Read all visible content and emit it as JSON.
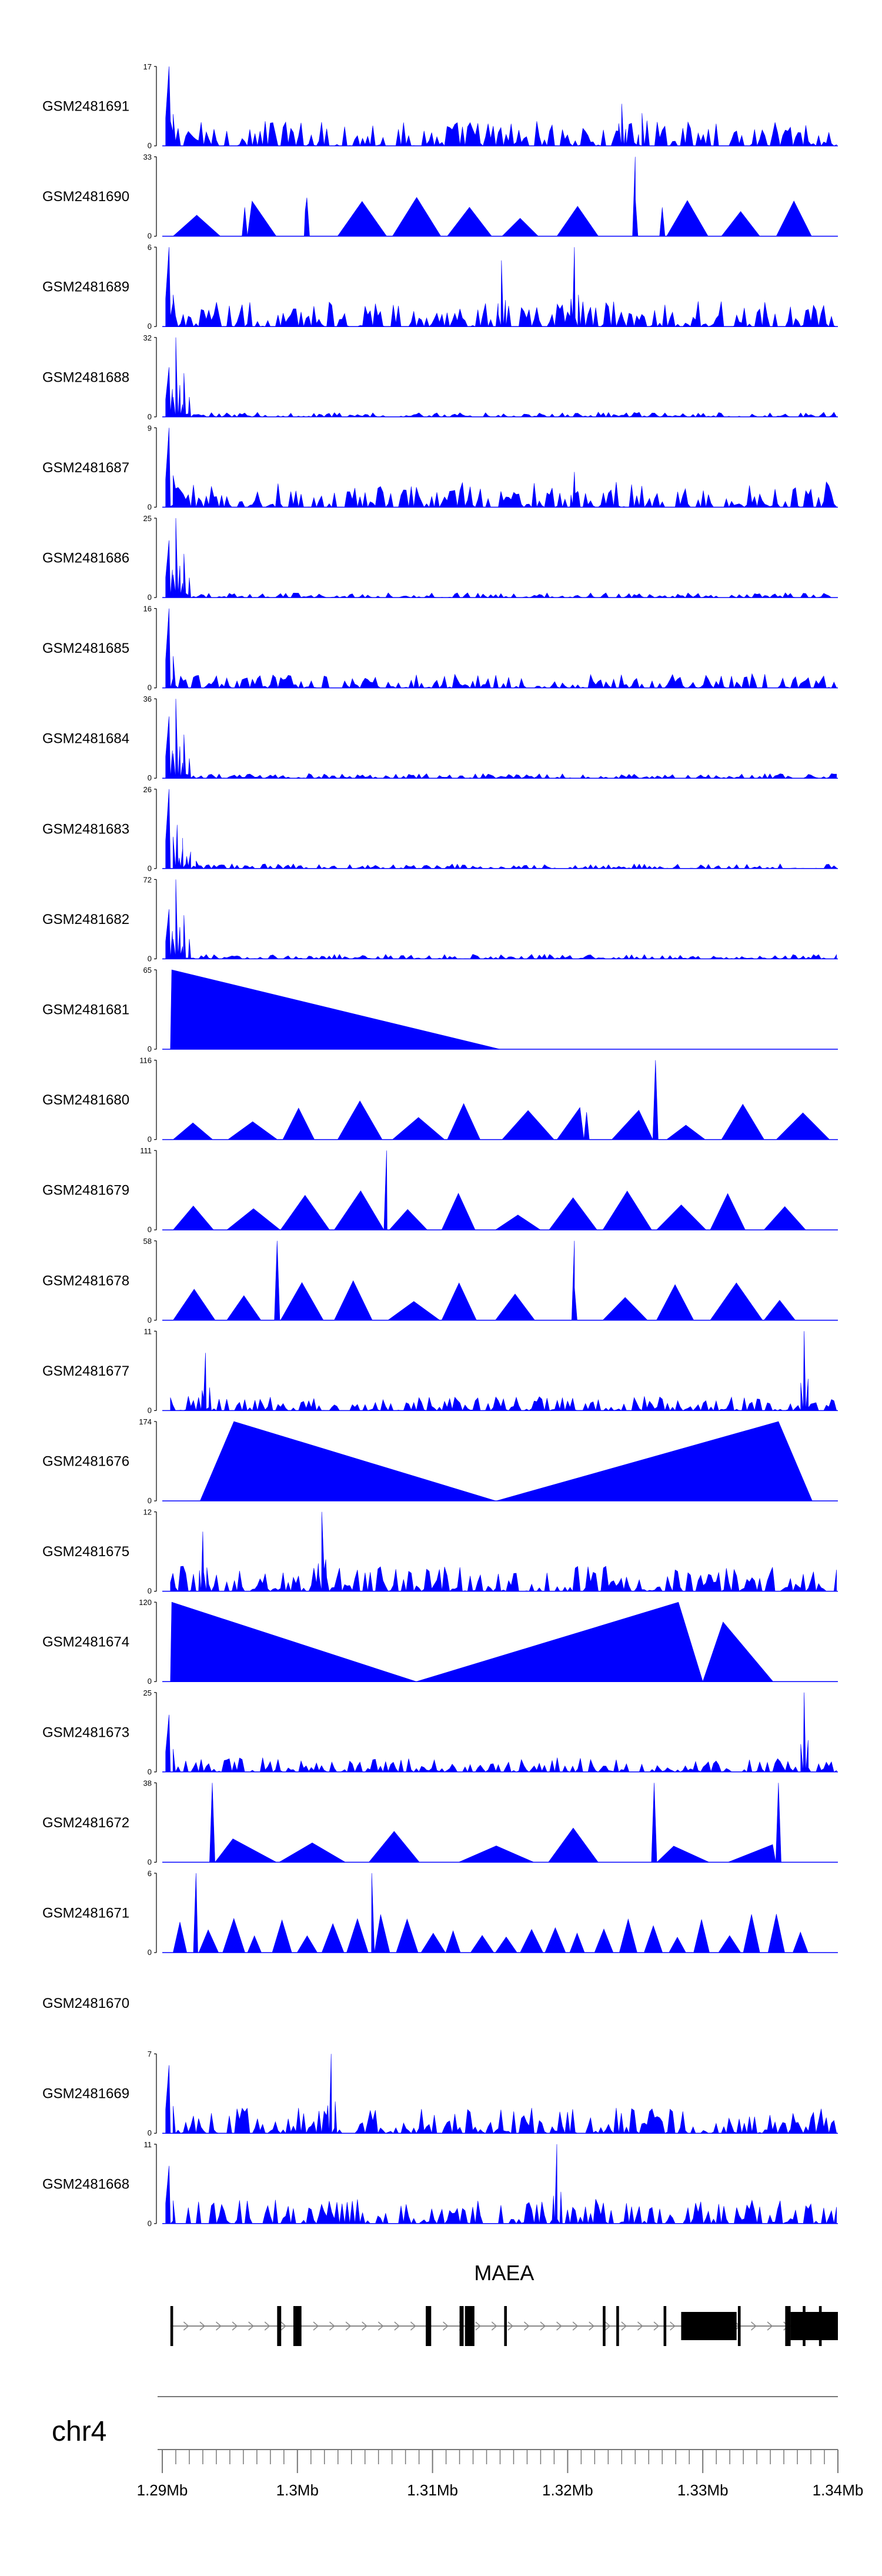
{
  "chart_data": {
    "type": "area",
    "chromosome": "chr4",
    "xlim": [
      1.29,
      1.34
    ],
    "x_unit": "Mb",
    "x_ticks": [
      "1.29Mb",
      "1.3Mb",
      "1.31Mb",
      "1.32Mb",
      "1.33Mb",
      "1.34Mb"
    ],
    "fill_color": "#0000ff",
    "tracks": [
      {
        "name": "GSM2481691",
        "ymax": 17,
        "pattern": "dense",
        "peaks": [
          [
            1.2905,
            17
          ],
          [
            1.324,
            9
          ],
          [
            1.3255,
            7
          ]
        ]
      },
      {
        "name": "GSM2481690",
        "ymax": 33,
        "pattern": "sparse_triangles",
        "peaks": [
          [
            1.2961,
            12
          ],
          [
            1.3007,
            16
          ],
          [
            1.325,
            33
          ],
          [
            1.327,
            12
          ]
        ]
      },
      {
        "name": "GSM2481689",
        "ymax": 6,
        "pattern": "dense",
        "peaks": [
          [
            1.2905,
            6
          ],
          [
            1.3151,
            5
          ],
          [
            1.3205,
            6
          ]
        ]
      },
      {
        "name": "GSM2481688",
        "ymax": 32,
        "pattern": "peak_start",
        "peaks": [
          [
            1.291,
            32
          ],
          [
            1.2905,
            20
          ]
        ]
      },
      {
        "name": "GSM2481687",
        "ymax": 9,
        "pattern": "dense",
        "peaks": [
          [
            1.2905,
            9
          ],
          [
            1.3205,
            4
          ]
        ]
      },
      {
        "name": "GSM2481686",
        "ymax": 25,
        "pattern": "peak_start",
        "peaks": [
          [
            1.291,
            25
          ],
          [
            1.2905,
            18
          ]
        ]
      },
      {
        "name": "GSM2481685",
        "ymax": 16,
        "pattern": "dense_low",
        "peaks": [
          [
            1.2905,
            16
          ]
        ]
      },
      {
        "name": "GSM2481684",
        "ymax": 36,
        "pattern": "peak_start",
        "peaks": [
          [
            1.291,
            36
          ],
          [
            1.2905,
            28
          ]
        ]
      },
      {
        "name": "GSM2481683",
        "ymax": 26,
        "pattern": "peak_start",
        "peaks": [
          [
            1.2905,
            26
          ],
          [
            1.2915,
            10
          ]
        ]
      },
      {
        "name": "GSM2481682",
        "ymax": 72,
        "pattern": "peak_start",
        "peaks": [
          [
            1.291,
            72
          ],
          [
            1.2905,
            45
          ]
        ]
      },
      {
        "name": "GSM2481681",
        "ymax": 65,
        "pattern": "wedge",
        "peaks": [
          [
            1.2907,
            65
          ]
        ],
        "end": 1.315
      },
      {
        "name": "GSM2481680",
        "ymax": 116,
        "pattern": "sparse_triangles",
        "peaks": [
          [
            1.3265,
            116
          ],
          [
            1.3214,
            40
          ]
        ]
      },
      {
        "name": "GSM2481679",
        "ymax": 111,
        "pattern": "sparse_triangles",
        "peaks": [
          [
            1.3066,
            111
          ]
        ]
      },
      {
        "name": "GSM2481678",
        "ymax": 58,
        "pattern": "sparse_triangles",
        "peaks": [
          [
            1.2985,
            58
          ],
          [
            1.3205,
            58
          ]
        ]
      },
      {
        "name": "GSM2481677",
        "ymax": 11,
        "pattern": "dense_low",
        "peaks": [
          [
            1.3375,
            11
          ],
          [
            1.2932,
            8
          ]
        ]
      },
      {
        "name": "GSM2481676",
        "ymax": 174,
        "pattern": "two_wedges",
        "peaks": [
          [
            1.2953,
            174
          ],
          [
            1.3356,
            174
          ]
        ]
      },
      {
        "name": "GSM2481675",
        "ymax": 12,
        "pattern": "dense",
        "peaks": [
          [
            1.3018,
            12
          ],
          [
            1.293,
            9
          ]
        ]
      },
      {
        "name": "GSM2481674",
        "ymax": 120,
        "pattern": "two_wedges",
        "peaks": [
          [
            1.2907,
            120
          ],
          [
            1.3282,
            120
          ],
          [
            1.3315,
            90
          ]
        ]
      },
      {
        "name": "GSM2481673",
        "ymax": 25,
        "pattern": "dense_low",
        "peaks": [
          [
            1.3375,
            25
          ],
          [
            1.2905,
            18
          ]
        ]
      },
      {
        "name": "GSM2481672",
        "ymax": 38,
        "pattern": "sparse_triangles",
        "peaks": [
          [
            1.2937,
            38
          ],
          [
            1.3264,
            38
          ],
          [
            1.3356,
            38
          ]
        ]
      },
      {
        "name": "GSM2481671",
        "ymax": 6,
        "pattern": "sparse_triangles",
        "peaks": [
          [
            1.2925,
            6
          ],
          [
            1.3055,
            6
          ]
        ]
      },
      {
        "name": "GSM2481670",
        "ymax": null,
        "pattern": "empty",
        "peaks": []
      },
      {
        "name": "GSM2481669",
        "ymax": 7,
        "pattern": "dense",
        "peaks": [
          [
            1.3025,
            7
          ],
          [
            1.2905,
            6
          ]
        ]
      },
      {
        "name": "GSM2481668",
        "ymax": 11,
        "pattern": "dense",
        "peaks": [
          [
            1.3192,
            11
          ],
          [
            1.2905,
            8
          ]
        ]
      }
    ],
    "gene": {
      "name": "MAEA",
      "start": 1.2906,
      "end": 1.34,
      "exons": [
        [
          1.2906,
          1.2908
        ],
        [
          1.2985,
          1.2988
        ],
        [
          1.2997,
          1.3003
        ],
        [
          1.3095,
          1.3099
        ],
        [
          1.312,
          1.3123
        ],
        [
          1.3124,
          1.3131
        ],
        [
          1.3153,
          1.3155
        ],
        [
          1.3226,
          1.3228
        ],
        [
          1.3236,
          1.3238
        ],
        [
          1.3271,
          1.3273
        ],
        [
          1.3284,
          1.3325
        ],
        [
          1.3326,
          1.3328
        ],
        [
          1.3361,
          1.3365
        ],
        [
          1.3365,
          1.34
        ],
        [
          1.3374,
          1.3376
        ],
        [
          1.3386,
          1.3388
        ]
      ]
    }
  }
}
